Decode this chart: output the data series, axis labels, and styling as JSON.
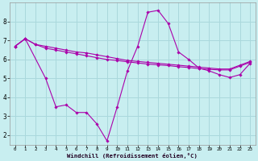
{
  "background_color": "#c8eef0",
  "grid_color": "#aad8dc",
  "line_color": "#aa00aa",
  "marker_color": "#aa00aa",
  "line_top_x": [
    0,
    1,
    2,
    3,
    4,
    5,
    6,
    7,
    8,
    9,
    10,
    11,
    12,
    13,
    14,
    15,
    16,
    17,
    18,
    19,
    20,
    21,
    22,
    23
  ],
  "line_top_y": [
    6.7,
    7.1,
    6.8,
    6.7,
    6.6,
    6.5,
    6.4,
    6.35,
    6.25,
    6.15,
    6.05,
    5.95,
    5.9,
    5.85,
    5.8,
    5.75,
    5.7,
    5.65,
    5.6,
    5.55,
    5.5,
    5.5,
    5.7,
    5.9
  ],
  "line_mid_x": [
    0,
    1,
    2,
    3,
    4,
    5,
    6,
    7,
    8,
    9,
    10,
    11,
    12,
    13,
    14,
    15,
    16,
    17,
    18,
    19,
    20,
    21,
    22,
    23
  ],
  "line_mid_y": [
    6.7,
    7.1,
    6.8,
    6.6,
    6.5,
    6.4,
    6.3,
    6.2,
    6.1,
    6.0,
    5.95,
    5.88,
    5.82,
    5.76,
    5.72,
    5.68,
    5.62,
    5.58,
    5.52,
    5.48,
    5.45,
    5.45,
    5.65,
    5.85
  ],
  "line_main_x": [
    0,
    1,
    3,
    4,
    5,
    6,
    7,
    8,
    9,
    10,
    11,
    12,
    13,
    14,
    15,
    16,
    17,
    18,
    19,
    20,
    21,
    22,
    23
  ],
  "line_main_y": [
    6.7,
    7.1,
    5.0,
    3.5,
    3.6,
    3.2,
    3.2,
    2.6,
    1.7,
    3.5,
    5.4,
    6.7,
    8.5,
    8.6,
    7.9,
    6.4,
    6.0,
    5.55,
    5.4,
    5.2,
    5.05,
    5.2,
    5.8
  ],
  "xlabel": "Windchill (Refroidissement éolien,°C)",
  "xlim_min": -0.5,
  "xlim_max": 23.5,
  "ylim_min": 1.5,
  "ylim_max": 9.0,
  "xticks": [
    0,
    1,
    2,
    3,
    4,
    5,
    6,
    7,
    8,
    9,
    10,
    11,
    12,
    13,
    14,
    15,
    16,
    17,
    18,
    19,
    20,
    21,
    22,
    23
  ],
  "yticks": [
    2,
    3,
    4,
    5,
    6,
    7,
    8
  ]
}
